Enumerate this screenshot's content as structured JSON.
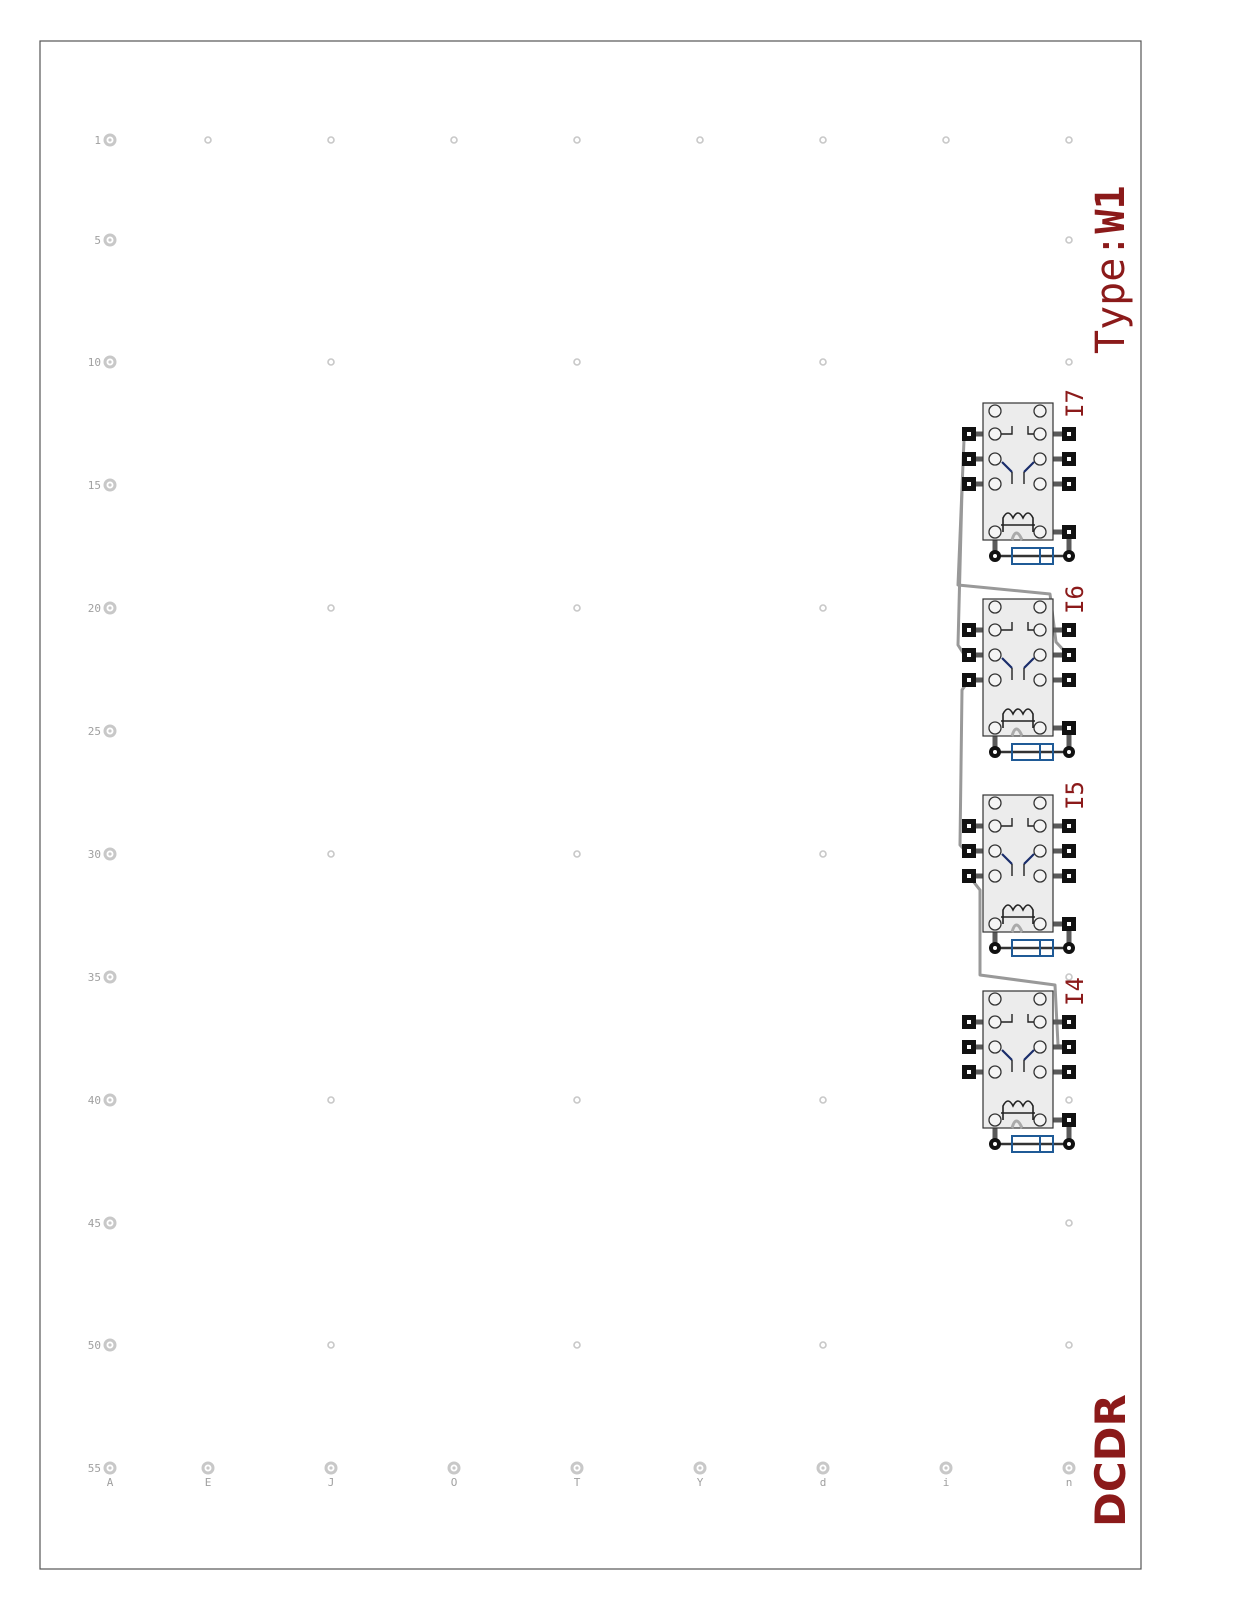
{
  "board": {
    "type_prefix": "Type:",
    "type_value": "W1",
    "brand": "DCDR",
    "row_labels": [
      "1",
      "5",
      "10",
      "15",
      "20",
      "25",
      "30",
      "35",
      "40",
      "45",
      "50",
      "55"
    ],
    "column_labels": [
      "A",
      "E",
      "J",
      "O",
      "T",
      "Y",
      "d",
      "i",
      "n"
    ]
  },
  "relays": [
    {
      "label": "I7"
    },
    {
      "label": "I6"
    },
    {
      "label": "I5"
    },
    {
      "label": "I4"
    }
  ],
  "colors": {
    "border": "#555555",
    "grid_dot": "#c8c8c8",
    "grid_text": "#a0a0a0",
    "relay_body": "#ececec",
    "trace": "#999999",
    "diode": "#1f5a96",
    "accent": "#8b1a1a"
  }
}
